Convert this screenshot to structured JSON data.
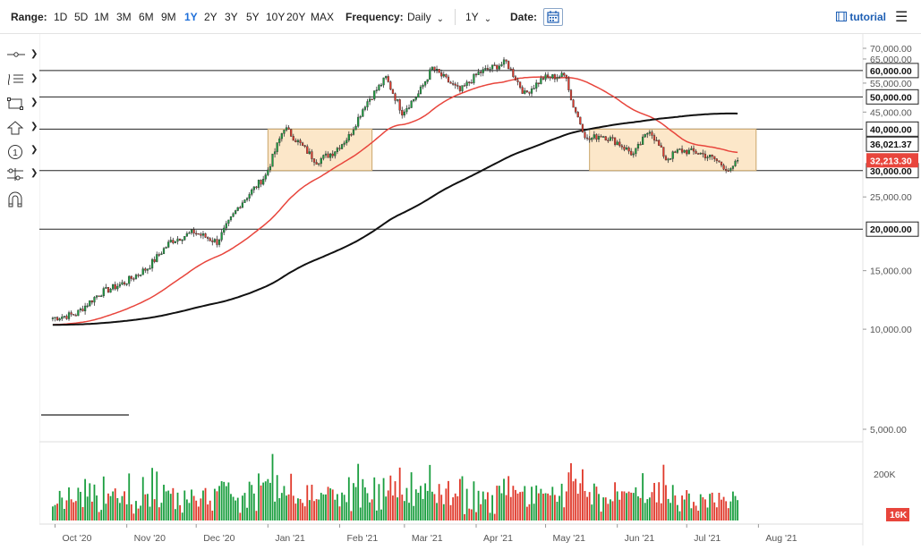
{
  "toolbar": {
    "range_label": "Range:",
    "ranges": [
      "1D",
      "5D",
      "1M",
      "3M",
      "6M",
      "9M",
      "1Y",
      "2Y",
      "3Y",
      "5Y",
      "10Y",
      "20Y",
      "MAX"
    ],
    "active_range": "1Y",
    "frequency_label": "Frequency:",
    "frequency_value": "Daily",
    "period_value": "1Y",
    "date_label": "Date:",
    "tutorial_label": "tutorial",
    "menu_icon": "hamburger-menu-icon",
    "calendar_icon": "calendar-icon"
  },
  "sidebar": {
    "tools": [
      "line-tool-icon",
      "fib-tool-icon",
      "rectangle-tool-icon",
      "arrow-shape-icon",
      "number-marker-icon",
      "pattern-tool-icon",
      "magnet-icon"
    ]
  },
  "colors": {
    "up": "#1a9e3f",
    "down": "#e0392b",
    "ma_fast": "#e8453c",
    "ma_slow": "#111111",
    "box_fill": "#fbe3c0",
    "box_stroke": "#c9a66b",
    "last_price_bg": "#e8453c",
    "volume_badge_bg": "#e8453c"
  },
  "chart_data": {
    "type": "candlestick",
    "yticks": [
      "70,000.00",
      "65,000.00",
      "55,000.00",
      "45,000.00",
      "25,000.00",
      "15,000.00",
      "10,000.00",
      "5,000.00"
    ],
    "level_labels": [
      "60,000.00",
      "50,000.00",
      "40,000.00",
      "30,000.00",
      "20,000.00"
    ],
    "levels": [
      60000,
      50000,
      40000,
      30000,
      20000
    ],
    "ma_label": "36,021.37",
    "last_price_label": "32,213.30",
    "xticks": [
      "Oct '20",
      "Nov '20",
      "Dec '20",
      "Jan '21",
      "Feb '21",
      "Mar '21",
      "Apr '21",
      "May '21",
      "Jun '21",
      "Jul '21",
      "Aug '21"
    ],
    "volume_ticks": [
      "200K"
    ],
    "volume_badge": "16K",
    "ylim": [
      5000,
      70000
    ],
    "scale": "log",
    "close_path": [
      [
        "2020-09-30",
        10800
      ],
      [
        "2020-10-10",
        11100
      ],
      [
        "2020-10-20",
        12800
      ],
      [
        "2020-10-31",
        13800
      ],
      [
        "2020-11-10",
        15300
      ],
      [
        "2020-11-20",
        18400
      ],
      [
        "2020-11-30",
        19600
      ],
      [
        "2020-12-10",
        18300
      ],
      [
        "2020-12-20",
        23800
      ],
      [
        "2020-12-31",
        29000
      ],
      [
        "2021-01-08",
        40500
      ],
      [
        "2021-01-15",
        36000
      ],
      [
        "2021-01-22",
        32000
      ],
      [
        "2021-01-29",
        34000
      ],
      [
        "2021-02-05",
        38000
      ],
      [
        "2021-02-12",
        47500
      ],
      [
        "2021-02-21",
        57000
      ],
      [
        "2021-02-28",
        45000
      ],
      [
        "2021-03-07",
        51000
      ],
      [
        "2021-03-13",
        61000
      ],
      [
        "2021-03-25",
        52000
      ],
      [
        "2021-04-02",
        59000
      ],
      [
        "2021-04-14",
        63500
      ],
      [
        "2021-04-22",
        51000
      ],
      [
        "2021-04-30",
        57000
      ],
      [
        "2021-05-10",
        58000
      ],
      [
        "2021-05-12",
        49000
      ],
      [
        "2021-05-19",
        37000
      ],
      [
        "2021-05-25",
        38500
      ],
      [
        "2021-06-01",
        36500
      ],
      [
        "2021-06-08",
        33500
      ],
      [
        "2021-06-15",
        40000
      ],
      [
        "2021-06-22",
        32500
      ],
      [
        "2021-06-28",
        34500
      ],
      [
        "2021-07-06",
        34000
      ],
      [
        "2021-07-13",
        32500
      ],
      [
        "2021-07-20",
        29800
      ],
      [
        "2021-07-23",
        32213
      ]
    ],
    "moving_averages": [
      {
        "period": 50,
        "color": "#e8453c",
        "end_value": 36800
      },
      {
        "period": 200,
        "color": "#111111",
        "end_value": 36021.37
      }
    ],
    "boxes": [
      {
        "from": "2021-01-01",
        "to": "2021-02-15",
        "low": 30000,
        "high": 40000
      },
      {
        "from": "2021-05-20",
        "to": "2021-07-31",
        "low": 30000,
        "high": 40000
      }
    ]
  }
}
